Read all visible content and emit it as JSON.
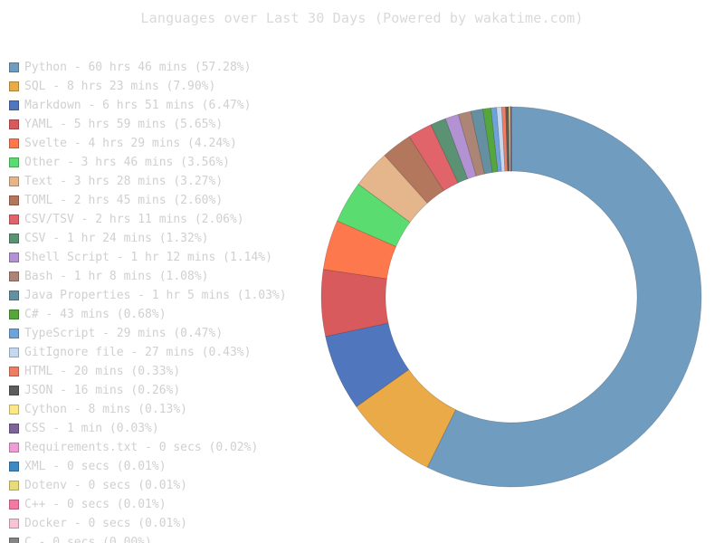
{
  "chart_data": {
    "type": "pie",
    "subtype": "donut",
    "title": "Languages over Last 30 Days (Powered by wakatime.com)",
    "legend_position": "left",
    "categories": [
      "Python",
      "SQL",
      "Markdown",
      "YAML",
      "Svelte",
      "Other",
      "Text",
      "TOML",
      "CSV/TSV",
      "CSV",
      "Shell Script",
      "Bash",
      "Java Properties",
      "C#",
      "TypeScript",
      "GitIgnore file",
      "HTML",
      "JSON",
      "Cython",
      "CSS",
      "Requirements.txt",
      "XML",
      "Dotenv",
      "C++",
      "Docker",
      "C"
    ],
    "values": [
      57.28,
      7.9,
      6.47,
      5.65,
      4.24,
      3.56,
      3.27,
      2.6,
      2.06,
      1.32,
      1.14,
      1.08,
      1.03,
      0.68,
      0.47,
      0.43,
      0.33,
      0.26,
      0.13,
      0.03,
      0.02,
      0.01,
      0.01,
      0.01,
      0.01,
      0.0
    ],
    "legend_labels": [
      "Python - 60 hrs 46 mins (57.28%)",
      "SQL - 8 hrs 23 mins (7.90%)",
      "Markdown - 6 hrs 51 mins (6.47%)",
      "YAML - 5 hrs 59 mins (5.65%)",
      "Svelte - 4 hrs 29 mins (4.24%)",
      "Other - 3 hrs 46 mins (3.56%)",
      "Text - 3 hrs 28 mins (3.27%)",
      "TOML - 2 hrs 45 mins (2.60%)",
      "CSV/TSV - 2 hrs 11 mins (2.06%)",
      "CSV - 1 hr 24 mins (1.32%)",
      "Shell Script - 1 hr 12 mins (1.14%)",
      "Bash - 1 hr 8 mins (1.08%)",
      "Java Properties - 1 hr 5 mins (1.03%)",
      "C# - 43 mins (0.68%)",
      "TypeScript - 29 mins (0.47%)",
      "GitIgnore file - 27 mins (0.43%)",
      "HTML - 20 mins (0.33%)",
      "JSON - 16 mins (0.26%)",
      "Cython - 8 mins (0.13%)",
      "CSS - 1 min (0.03%)",
      "Requirements.txt - 0 secs (0.02%)",
      "XML - 0 secs (0.01%)",
      "Dotenv - 0 secs (0.01%)",
      "C++ - 0 secs (0.01%)",
      "Docker - 0 secs (0.01%)",
      "C - 0 secs (0.00%)"
    ],
    "colors": [
      "#709cc0",
      "#eaaa48",
      "#5077bd",
      "#d95a5d",
      "#fe784d",
      "#5bdc71",
      "#e5b68b",
      "#b3775e",
      "#e06469",
      "#5c9274",
      "#b392d3",
      "#ad8577",
      "#6490a2",
      "#54a63d",
      "#6ea2d9",
      "#c6d8f0",
      "#ee7d62",
      "#5c5c5c",
      "#fde684",
      "#7d6697",
      "#f09dd5",
      "#3f89c3",
      "#e8dc78",
      "#f478a4",
      "#f6c4d4",
      "#858585"
    ]
  }
}
